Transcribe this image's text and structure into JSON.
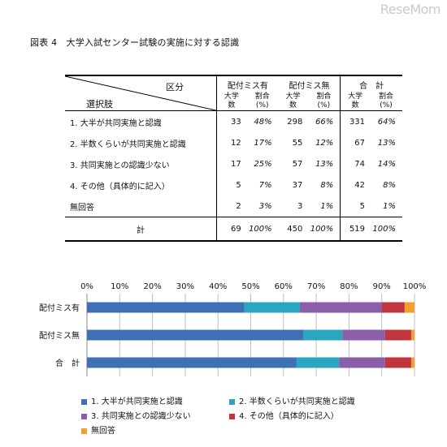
{
  "watermark": "ReseMom",
  "figure_title": "図表 4　大学入試センター試験の実施に対する認識",
  "table": {
    "header_kubun": "区分",
    "header_sentaku": "選択肢",
    "groups": [
      "配付ミス有",
      "配付ミス無",
      "合　計"
    ],
    "sub_count": "大学数",
    "sub_pct_top": "割合",
    "sub_pct_bot": "(%)",
    "rows": [
      {
        "label": "1. 大半が共同実施と認識",
        "v": [
          "33",
          "48%",
          "298",
          "66%",
          "331",
          "64%"
        ]
      },
      {
        "label": "2. 半数くらいが共同実施と認識",
        "v": [
          "12",
          "17%",
          "55",
          "12%",
          "67",
          "13%"
        ]
      },
      {
        "label": "3. 共同実施との認識少ない",
        "v": [
          "17",
          "25%",
          "57",
          "13%",
          "74",
          "14%"
        ]
      },
      {
        "label": "4. その他（具体的に記入）",
        "v": [
          "5",
          "7%",
          "37",
          "8%",
          "42",
          "8%"
        ]
      },
      {
        "label": "無回答",
        "v": [
          "2",
          "3%",
          "3",
          "1%",
          "5",
          "1%"
        ]
      }
    ],
    "total": {
      "label": "計",
      "v": [
        "69",
        "100%",
        "450",
        "100%",
        "519",
        "100%"
      ]
    }
  },
  "chart_data": {
    "type": "bar",
    "orientation": "horizontal",
    "stacked": true,
    "categories": [
      "配付ミス有",
      "配付ミス無",
      "合　計"
    ],
    "xlim": [
      0,
      100
    ],
    "xticks": [
      "0%",
      "10%",
      "20%",
      "30%",
      "40%",
      "50%",
      "60%",
      "70%",
      "80%",
      "90%",
      "100%"
    ],
    "series": [
      {
        "name": "1.  大半が共同実施と認識",
        "values": [
          48,
          66,
          64
        ],
        "color": "#3f6fb4"
      },
      {
        "name": "2.  半数くらいが共同実施と認識",
        "values": [
          17,
          12,
          13
        ],
        "color": "#2aa6bf"
      },
      {
        "name": "3.  共同実施との認識少ない",
        "values": [
          25,
          13,
          14
        ],
        "color": "#8a5ea8"
      },
      {
        "name": "4.  その他（具体的に記入）",
        "values": [
          7,
          8,
          8
        ],
        "color": "#c0363f"
      },
      {
        "name": "無回答",
        "values": [
          3,
          1,
          1
        ],
        "color": "#f0a030"
      }
    ],
    "grid": true,
    "legend_position": "bottom"
  }
}
